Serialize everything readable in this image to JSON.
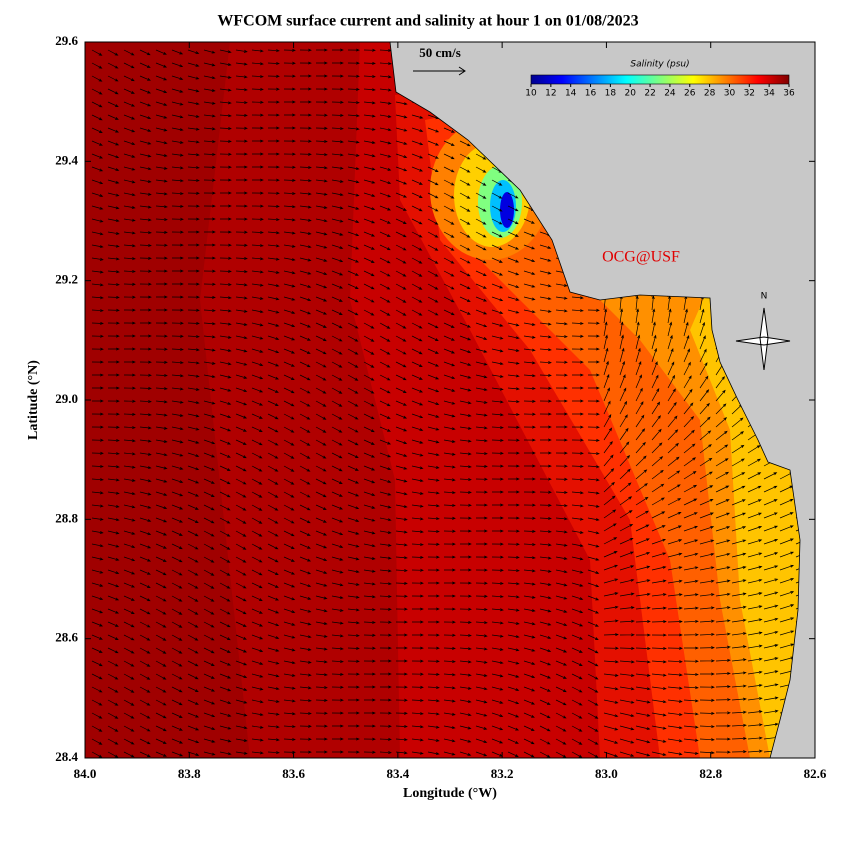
{
  "title": "WFCOM surface current and salinity at hour 1 on 01/08/2023",
  "map": {
    "xlabel": "Longitude (°W)",
    "ylabel": "Latitude (°N)",
    "xlim": [
      84.0,
      82.6
    ],
    "ylim": [
      28.4,
      29.6
    ],
    "xticks": [
      {
        "value": 84.0,
        "label": "84.0"
      },
      83.8,
      83.6,
      83.4,
      83.2,
      {
        "value": 83.0,
        "label": "83.0"
      },
      82.8,
      82.6
    ],
    "yticks": [
      28.4,
      28.6,
      28.8,
      {
        "value": 29.0,
        "label": "29.0"
      },
      29.2,
      29.4,
      29.6
    ],
    "scale_label": "50 cm/s",
    "credit": "OCG@USF",
    "north_label": "N"
  },
  "colorbar": {
    "title": "Salinity (psu)",
    "lim": [
      10,
      36
    ],
    "ticks": [
      10,
      12,
      14,
      16,
      18,
      20,
      22,
      24,
      26,
      28,
      30,
      32,
      34,
      36
    ]
  }
}
